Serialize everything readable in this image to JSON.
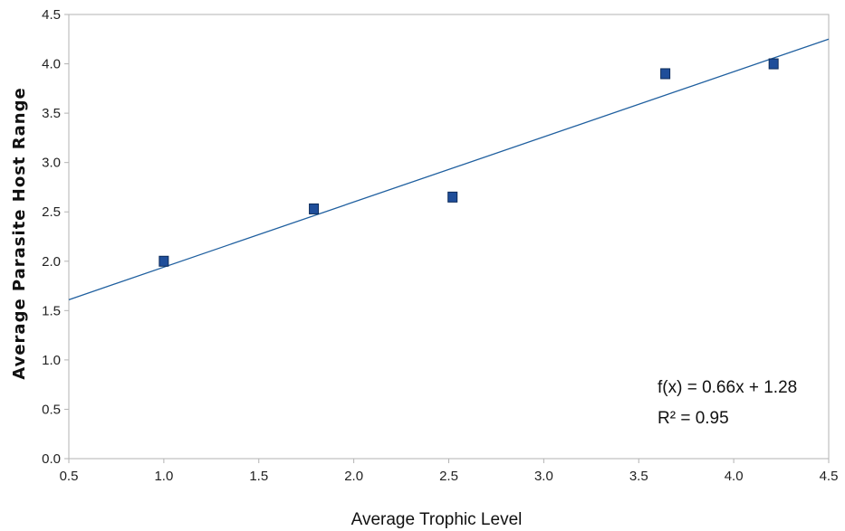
{
  "chart_data": {
    "type": "scatter",
    "xlabel": "Average Trophic Level",
    "ylabel": "Average Parasite Host Range",
    "xlim": [
      0.5,
      4.5
    ],
    "ylim": [
      0.0,
      4.5
    ],
    "x_ticks": [
      "0.5",
      "1.0",
      "1.5",
      "2.0",
      "2.5",
      "3.0",
      "3.5",
      "4.0",
      "4.5"
    ],
    "y_ticks": [
      "0.0",
      "0.5",
      "1.0",
      "1.5",
      "2.0",
      "2.5",
      "3.0",
      "3.5",
      "4.0",
      "4.5"
    ],
    "grid": false,
    "series": [
      {
        "x": [
          1.0,
          1.79,
          2.52,
          3.64,
          4.21
        ],
        "y": [
          2.0,
          2.53,
          2.65,
          3.9,
          4.0
        ],
        "color": "#1f4e9a"
      }
    ],
    "trendline": {
      "slope": 0.66,
      "intercept": 1.28,
      "color": "#1f5f9f",
      "equation_label": "f(x) = 0.66x + 1.28",
      "r2_label": "R² = 0.95"
    }
  }
}
